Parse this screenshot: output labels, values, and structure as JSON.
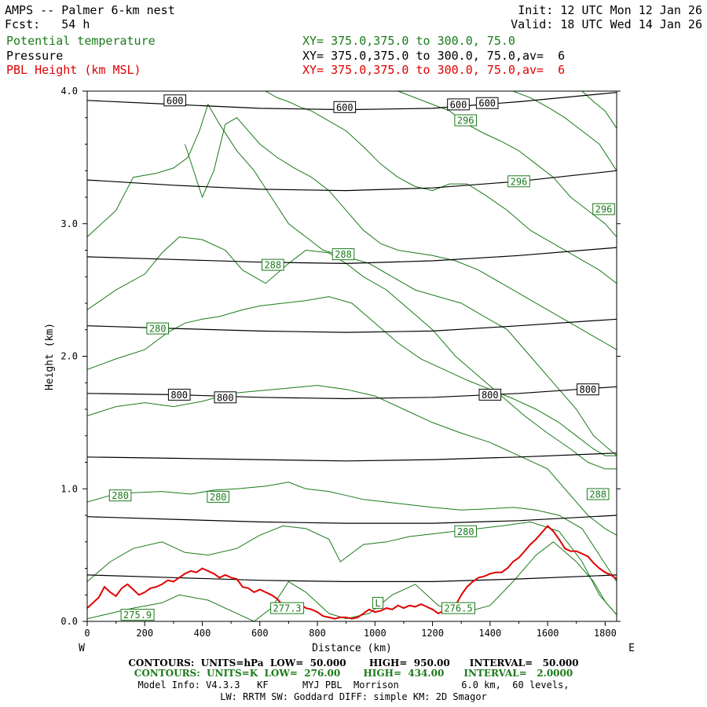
{
  "header": {
    "model_title": "AMPS -- Palmer 6-km nest",
    "forecast": "Fcst:   54 h",
    "init": "Init: 12 UTC Mon 12 Jan 26",
    "valid": "Valid: 18 UTC Wed 14 Jan 26",
    "field1_name": "Potential temperature",
    "field1_xy": "XY= 375.0,375.0 to 300.0, 75.0",
    "field2_name": "Pressure",
    "field2_xy": "XY= 375.0,375.0 to 300.0, 75.0,av=  6",
    "field3_name": "PBL Height (km MSL)",
    "field3_xy": "XY= 375.0,375.0 to 300.0, 75.0,av=  6"
  },
  "colors": {
    "theta": "#1a7a1a",
    "pressure": "#000000",
    "pbl": "#e00000"
  },
  "chart_data": {
    "type": "line",
    "xlabel": "Distance (km)",
    "ylabel": "Height (km)",
    "xlim": [
      0,
      1840
    ],
    "ylim": [
      0.0,
      4.0
    ],
    "xticks": [
      0,
      200,
      400,
      600,
      800,
      1000,
      1200,
      1400,
      1600,
      1800
    ],
    "yticks": [
      0.0,
      1.0,
      2.0,
      3.0,
      4.0
    ],
    "ytick_labels": [
      "0.0",
      "1.0",
      "2.0",
      "3.0",
      "4.0"
    ],
    "left_end_label": "W",
    "right_end_label": "E",
    "pressure_contours": [
      {
        "level": 600,
        "x": [
          0,
          300,
          600,
          900,
          1200,
          1500,
          1840
        ],
        "y": [
          3.93,
          3.9,
          3.87,
          3.86,
          3.87,
          3.92,
          3.99
        ]
      },
      {
        "level": 650,
        "x": [
          0,
          300,
          600,
          900,
          1200,
          1500,
          1840
        ],
        "y": [
          3.33,
          3.29,
          3.26,
          3.25,
          3.27,
          3.32,
          3.4
        ]
      },
      {
        "level": 700,
        "x": [
          0,
          300,
          600,
          900,
          1200,
          1500,
          1840
        ],
        "y": [
          2.75,
          2.73,
          2.71,
          2.7,
          2.72,
          2.76,
          2.82
        ]
      },
      {
        "level": 750,
        "x": [
          0,
          300,
          600,
          900,
          1200,
          1500,
          1840
        ],
        "y": [
          2.23,
          2.21,
          2.19,
          2.18,
          2.19,
          2.23,
          2.28
        ]
      },
      {
        "level": 800,
        "x": [
          0,
          300,
          600,
          900,
          1200,
          1500,
          1840
        ],
        "y": [
          1.72,
          1.71,
          1.69,
          1.68,
          1.69,
          1.72,
          1.77
        ]
      },
      {
        "level": 850,
        "x": [
          0,
          300,
          600,
          900,
          1200,
          1500,
          1840
        ],
        "y": [
          1.24,
          1.23,
          1.22,
          1.21,
          1.22,
          1.24,
          1.27
        ]
      },
      {
        "level": 900,
        "x": [
          0,
          300,
          600,
          900,
          1200,
          1500,
          1840
        ],
        "y": [
          0.79,
          0.77,
          0.75,
          0.74,
          0.74,
          0.76,
          0.8
        ]
      },
      {
        "level": 950,
        "x": [
          0,
          300,
          600,
          900,
          1200,
          1500,
          1840
        ],
        "y": [
          0.35,
          0.33,
          0.31,
          0.3,
          0.3,
          0.32,
          0.35
        ]
      }
    ],
    "pressure_labels": [
      {
        "text": "600",
        "x": 305,
        "y": 3.93
      },
      {
        "text": "600",
        "x": 895,
        "y": 3.88
      },
      {
        "text": "600",
        "x": 1290,
        "y": 3.9
      },
      {
        "text": "600",
        "x": 1390,
        "y": 3.91
      },
      {
        "text": "800",
        "x": 320,
        "y": 1.71
      },
      {
        "text": "800",
        "x": 480,
        "y": 1.69
      },
      {
        "text": "800",
        "x": 1400,
        "y": 1.71
      },
      {
        "text": "800",
        "x": 1740,
        "y": 1.75
      }
    ],
    "theta_contours": [
      {
        "x": [
          0,
          80,
          160,
          260,
          320,
          420,
          520,
          580,
          640,
          700,
          760,
          840,
          900,
          980,
          1060,
          1140,
          1220,
          1300,
          1400,
          1480,
          1560,
          1620,
          1700,
          1760,
          1800,
          1840
        ],
        "y": [
          0.02,
          0.06,
          0.1,
          0.14,
          0.2,
          0.16,
          0.06,
          0.0,
          0.1,
          0.3,
          0.22,
          0.06,
          0.02,
          0.06,
          0.2,
          0.28,
          0.12,
          0.06,
          0.12,
          0.3,
          0.5,
          0.6,
          0.45,
          0.3,
          0.15,
          0.05
        ]
      },
      {
        "x": [
          0,
          80,
          160,
          260,
          340,
          420,
          520,
          600,
          680,
          760,
          840,
          880,
          960,
          1040,
          1120,
          1200,
          1280,
          1360,
          1440,
          1540,
          1640,
          1720,
          1780,
          1840
        ],
        "y": [
          0.3,
          0.45,
          0.55,
          0.6,
          0.52,
          0.5,
          0.55,
          0.65,
          0.72,
          0.7,
          0.62,
          0.45,
          0.58,
          0.6,
          0.64,
          0.66,
          0.68,
          0.7,
          0.72,
          0.75,
          0.68,
          0.45,
          0.2,
          0.05
        ]
      },
      {
        "x": [
          0,
          80,
          160,
          260,
          360,
          440,
          520,
          620,
          700,
          760,
          840,
          900,
          960,
          1040,
          1120,
          1200,
          1300,
          1400,
          1480,
          1560,
          1640,
          1720,
          1780,
          1840
        ],
        "y": [
          0.9,
          0.95,
          0.97,
          0.98,
          0.96,
          0.99,
          1.0,
          1.02,
          1.05,
          1.0,
          0.98,
          0.95,
          0.92,
          0.9,
          0.88,
          0.86,
          0.84,
          0.85,
          0.86,
          0.84,
          0.8,
          0.7,
          0.5,
          0.3
        ]
      },
      {
        "x": [
          0,
          100,
          200,
          300,
          400,
          500,
          600,
          700,
          800,
          900,
          1000,
          1100,
          1200,
          1300,
          1400,
          1500,
          1600,
          1680,
          1740,
          1800,
          1840
        ],
        "y": [
          1.55,
          1.62,
          1.65,
          1.62,
          1.66,
          1.72,
          1.74,
          1.76,
          1.78,
          1.75,
          1.7,
          1.6,
          1.5,
          1.42,
          1.35,
          1.25,
          1.15,
          0.95,
          0.8,
          0.7,
          0.65
        ]
      },
      {
        "x": [
          0,
          100,
          200,
          280,
          340,
          400,
          460,
          540,
          600,
          680,
          760,
          840,
          920,
          1000,
          1080,
          1160,
          1240,
          1320,
          1400,
          1480,
          1560,
          1640,
          1700,
          1760,
          1800,
          1840
        ],
        "y": [
          1.9,
          1.98,
          2.05,
          2.18,
          2.25,
          2.28,
          2.3,
          2.35,
          2.38,
          2.4,
          2.42,
          2.45,
          2.4,
          2.25,
          2.1,
          1.98,
          1.9,
          1.82,
          1.75,
          1.68,
          1.6,
          1.5,
          1.4,
          1.3,
          1.25,
          1.25
        ]
      },
      {
        "x": [
          0,
          100,
          200,
          260,
          320,
          400,
          480,
          540,
          620,
          700,
          760,
          840,
          900,
          960,
          1040,
          1120,
          1200,
          1280,
          1360,
          1440,
          1520,
          1600,
          1680,
          1740,
          1800,
          1840
        ],
        "y": [
          2.35,
          2.5,
          2.62,
          2.78,
          2.9,
          2.88,
          2.8,
          2.65,
          2.55,
          2.7,
          2.8,
          2.78,
          2.7,
          2.6,
          2.5,
          2.35,
          2.2,
          2.0,
          1.85,
          1.7,
          1.55,
          1.42,
          1.3,
          1.2,
          1.15,
          1.15
        ]
      },
      {
        "x": [
          0,
          100,
          160,
          240,
          300,
          350,
          390,
          420,
          460,
          520,
          580,
          640,
          700,
          760,
          820,
          900,
          980,
          1060,
          1140,
          1220,
          1300,
          1380,
          1460,
          1540,
          1620,
          1700,
          1760,
          1840
        ],
        "y": [
          2.9,
          3.1,
          3.35,
          3.38,
          3.42,
          3.5,
          3.7,
          3.9,
          3.75,
          3.55,
          3.4,
          3.2,
          3.0,
          2.9,
          2.8,
          2.75,
          2.7,
          2.6,
          2.5,
          2.45,
          2.4,
          2.3,
          2.2,
          2.0,
          1.8,
          1.6,
          1.4,
          1.25
        ]
      },
      {
        "x": [
          340,
          400,
          440,
          480,
          520,
          560,
          600,
          660,
          720,
          780,
          840,
          900,
          960,
          1020,
          1080,
          1140,
          1200,
          1280,
          1360,
          1440,
          1520,
          1600,
          1680,
          1760,
          1840
        ],
        "y": [
          3.6,
          3.2,
          3.4,
          3.75,
          3.8,
          3.7,
          3.6,
          3.5,
          3.42,
          3.35,
          3.25,
          3.1,
          2.95,
          2.85,
          2.8,
          2.78,
          2.76,
          2.72,
          2.65,
          2.55,
          2.45,
          2.35,
          2.25,
          2.15,
          2.05
        ]
      },
      {
        "x": [
          620,
          660,
          700,
          740,
          780,
          820,
          860,
          900,
          960,
          1020,
          1080,
          1140,
          1200,
          1260,
          1320,
          1380,
          1460,
          1540,
          1620,
          1700,
          1780,
          1840
        ],
        "y": [
          4.0,
          3.95,
          3.92,
          3.88,
          3.85,
          3.8,
          3.75,
          3.7,
          3.58,
          3.45,
          3.35,
          3.28,
          3.25,
          3.3,
          3.3,
          3.22,
          3.1,
          2.95,
          2.85,
          2.75,
          2.65,
          2.55
        ]
      },
      {
        "x": [
          1080,
          1140,
          1200,
          1260,
          1320,
          1380,
          1440,
          1500,
          1560,
          1620,
          1680,
          1740,
          1800,
          1840
        ],
        "y": [
          4.0,
          3.95,
          3.9,
          3.85,
          3.75,
          3.68,
          3.62,
          3.55,
          3.45,
          3.35,
          3.2,
          3.1,
          3.0,
          2.9
        ]
      },
      {
        "x": [
          1480,
          1540,
          1600,
          1660,
          1720,
          1780,
          1840
        ],
        "y": [
          4.0,
          3.95,
          3.88,
          3.8,
          3.7,
          3.6,
          3.4
        ]
      },
      {
        "x": [
          1720,
          1760,
          1800,
          1840
        ],
        "y": [
          4.0,
          3.92,
          3.85,
          3.72
        ]
      }
    ],
    "theta_labels": [
      {
        "text": "296",
        "x": 1315,
        "y": 3.78
      },
      {
        "text": "296",
        "x": 1500,
        "y": 3.32
      },
      {
        "text": "296",
        "x": 1795,
        "y": 3.11
      },
      {
        "text": "288",
        "x": 645,
        "y": 2.69
      },
      {
        "text": "288",
        "x": 890,
        "y": 2.77
      },
      {
        "text": "288",
        "x": 1775,
        "y": 0.96
      },
      {
        "text": "280",
        "x": 245,
        "y": 2.21
      },
      {
        "text": "280",
        "x": 115,
        "y": 0.95
      },
      {
        "text": "280",
        "x": 455,
        "y": 0.94
      },
      {
        "text": "280",
        "x": 1315,
        "y": 0.68
      },
      {
        "text": "276.5",
        "x": 1290,
        "y": 0.1
      },
      {
        "text": "L",
        "x": 1010,
        "y": 0.14
      },
      {
        "text": "275.9",
        "x": 175,
        "y": 0.05
      },
      {
        "text": "277.3",
        "x": 695,
        "y": 0.1
      }
    ],
    "pbl_height": {
      "x": [
        0,
        20,
        40,
        60,
        80,
        100,
        120,
        140,
        160,
        180,
        200,
        220,
        240,
        260,
        280,
        300,
        320,
        340,
        360,
        380,
        400,
        420,
        440,
        460,
        480,
        500,
        520,
        540,
        560,
        580,
        600,
        620,
        640,
        660,
        680,
        700,
        720,
        740,
        760,
        780,
        800,
        820,
        840,
        860,
        880,
        900,
        920,
        940,
        960,
        980,
        1000,
        1020,
        1040,
        1060,
        1080,
        1100,
        1120,
        1140,
        1160,
        1180,
        1200,
        1220,
        1240,
        1260,
        1280,
        1300,
        1320,
        1340,
        1360,
        1380,
        1400,
        1420,
        1440,
        1460,
        1480,
        1500,
        1520,
        1540,
        1560,
        1580,
        1600,
        1620,
        1640,
        1660,
        1680,
        1700,
        1720,
        1740,
        1760,
        1780,
        1800,
        1820,
        1840
      ],
      "y": [
        0.1,
        0.14,
        0.18,
        0.26,
        0.22,
        0.19,
        0.25,
        0.28,
        0.24,
        0.2,
        0.22,
        0.25,
        0.26,
        0.28,
        0.31,
        0.3,
        0.33,
        0.36,
        0.38,
        0.37,
        0.4,
        0.38,
        0.36,
        0.33,
        0.35,
        0.33,
        0.32,
        0.26,
        0.25,
        0.22,
        0.24,
        0.22,
        0.2,
        0.17,
        0.12,
        0.1,
        0.12,
        0.13,
        0.1,
        0.09,
        0.07,
        0.04,
        0.03,
        0.02,
        0.03,
        0.03,
        0.02,
        0.03,
        0.06,
        0.09,
        0.07,
        0.08,
        0.1,
        0.09,
        0.12,
        0.1,
        0.12,
        0.11,
        0.13,
        0.11,
        0.09,
        0.06,
        0.08,
        0.1,
        0.12,
        0.2,
        0.26,
        0.3,
        0.33,
        0.34,
        0.36,
        0.37,
        0.37,
        0.4,
        0.45,
        0.48,
        0.53,
        0.58,
        0.62,
        0.67,
        0.72,
        0.68,
        0.62,
        0.55,
        0.53,
        0.53,
        0.51,
        0.49,
        0.44,
        0.4,
        0.37,
        0.35,
        0.32
      ]
    },
    "terrain_note": ""
  },
  "footer": {
    "contours_p": "CONTOURS:  UNITS=hPa  LOW=  50.000       HIGH=  950.00      INTERVAL=   50.000",
    "contours_t": "CONTOURS:  UNITS=K  LOW=  276.00       HIGH=  434.00      INTERVAL=   2.0000",
    "model_info": "Model Info: V4.3.3   KF      MYJ PBL  Morrison           6.0 km,  60 levels,",
    "model_info2": "LW: RRTM SW: Goddard DIFF: simple KM: 2D Smagor"
  }
}
